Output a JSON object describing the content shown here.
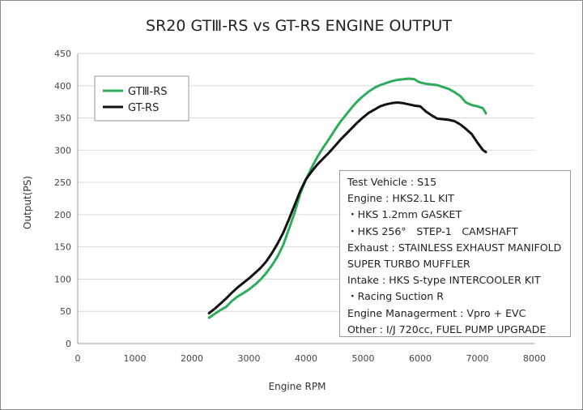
{
  "chart_data": {
    "type": "line",
    "title": "SR20 GTⅢ-RS vs GT-RS ENGINE OUTPUT",
    "xlabel": "Engine RPM",
    "ylabel": "Output(PS)",
    "xlim": [
      0,
      8000
    ],
    "ylim": [
      0,
      450
    ],
    "xticks": [
      0,
      1000,
      2000,
      3000,
      4000,
      5000,
      6000,
      7000,
      8000
    ],
    "yticks": [
      0,
      50,
      100,
      150,
      200,
      250,
      300,
      350,
      400,
      450
    ],
    "grid": "horizontal",
    "legend_position": "top-left",
    "series": [
      {
        "name": "GTⅢ-RS",
        "color": "#2eab5b",
        "x": [
          2300,
          2400,
          2500,
          2600,
          2700,
          2800,
          2900,
          3000,
          3100,
          3200,
          3300,
          3400,
          3500,
          3600,
          3700,
          3800,
          3900,
          4000,
          4100,
          4200,
          4300,
          4400,
          4500,
          4600,
          4700,
          4800,
          4900,
          5000,
          5100,
          5200,
          5300,
          5400,
          5500,
          5600,
          5700,
          5800,
          5900,
          5950,
          6000,
          6100,
          6200,
          6300,
          6400,
          6500,
          6600,
          6700,
          6800,
          6900,
          7000,
          7100,
          7150
        ],
        "y": [
          40,
          46,
          52,
          57,
          66,
          73,
          78,
          84,
          91,
          99,
          109,
          121,
          135,
          153,
          178,
          203,
          233,
          255,
          273,
          290,
          304,
          317,
          331,
          344,
          355,
          366,
          376,
          384,
          391,
          397,
          401,
          404,
          407,
          409,
          410,
          411,
          410,
          407,
          405,
          403,
          402,
          401,
          398,
          395,
          390,
          384,
          374,
          370,
          368,
          365,
          357
        ]
      },
      {
        "name": "GT-RS",
        "color": "#111111",
        "x": [
          2300,
          2400,
          2500,
          2600,
          2700,
          2800,
          2900,
          3000,
          3100,
          3200,
          3300,
          3400,
          3500,
          3600,
          3700,
          3800,
          3900,
          4000,
          4100,
          4200,
          4300,
          4400,
          4500,
          4600,
          4700,
          4800,
          4900,
          5000,
          5100,
          5200,
          5300,
          5400,
          5500,
          5600,
          5700,
          5800,
          5900,
          6000,
          6100,
          6200,
          6300,
          6400,
          6500,
          6600,
          6700,
          6800,
          6900,
          7000,
          7100,
          7150
        ],
        "y": [
          47,
          54,
          62,
          70,
          79,
          87,
          94,
          101,
          109,
          117,
          127,
          140,
          155,
          172,
          193,
          215,
          237,
          255,
          267,
          278,
          287,
          296,
          306,
          316,
          325,
          334,
          343,
          351,
          358,
          363,
          368,
          371,
          373,
          374,
          373,
          371,
          369,
          368,
          360,
          354,
          349,
          348,
          347,
          345,
          340,
          333,
          325,
          312,
          300,
          297
        ]
      }
    ]
  },
  "notes": [
    "Test Vehicle : S15",
    "Engine : HKS2.1L KIT",
    "・HKS 1.2mm GASKET",
    "・HKS 256°　STEP-1　CAMSHAFT",
    "Exhaust : STAINLESS EXHAUST MANIFOLD",
    "SUPER TURBO MUFFLER",
    "Intake : HKS S-type INTERCOOLER KIT",
    "・Racing Suction R",
    "Engine Managerment : Vpro + EVC",
    "Other : I/J 720cc, FUEL PUMP UPGRADE"
  ]
}
